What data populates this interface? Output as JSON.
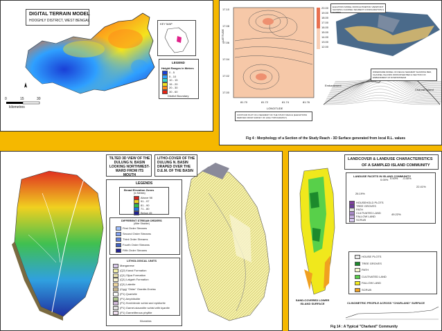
{
  "dtm": {
    "title": "DIGITAL TERRAIN MODEL",
    "subtitle": "HOOGHLY DISTRICT, WEST BENGAL",
    "key_map_label": "KEY MAP",
    "legend_title": "LEGEND",
    "height_title": "Height Ranges in Meters",
    "height_classes": [
      {
        "label": "0 - 5",
        "color": "#1a3fd6"
      },
      {
        "label": "5 - 10",
        "color": "#2fa0ff"
      },
      {
        "label": "10 - 15",
        "color": "#35d4c8"
      },
      {
        "label": "15 - 20",
        "color": "#f4e31c"
      },
      {
        "label": "20 - 30",
        "color": "#ff8a1a"
      },
      {
        "label": "30 - 60",
        "color": "#e82313"
      }
    ],
    "boundary_label": "District Boundary",
    "scale_ticks": [
      "0",
      "15",
      "30"
    ],
    "scale_unit": "kilometres"
  },
  "morph": {
    "caption": "Fig 4 : Morphology of a Section of the Study Reach - 3D Surface generated from local R.L. values",
    "contour_note": "CONTOUR PLOT OF A SEGMENT OF THE STUDY REACH (ELEVATIONS DERIVED FROM SURVEY OF HIGH TOPOGRAPHY)",
    "elev_scale": [
      "20.00",
      "19.00",
      "18.00",
      "17.00",
      "16.00",
      "15.00",
      "14.00",
      "13.00",
      "12.00"
    ],
    "x_ticks": [
      "81.70",
      "81.72",
      "81.74",
      "81.76"
    ],
    "y_ticks": [
      "17.10",
      "17.08",
      "17.06",
      "17.04",
      "17.02",
      "17.00"
    ],
    "x_label": "LONGITUDE",
    "y_label": "LATITUDE",
    "top3d_note": "ELEVATION MODEL FROM ALTIMETRIC VIEWPOINT SHOWING CHANNEL SEGMENT CONFIGURATION & SLOPES",
    "wire_note": "WIREFRAME MODEL OF REACH SEGMENT SHOWING BED, CHANNEL ISLANDS FROM RIVER BED & SECTION OF EMBANKMENT AT DOWNSTREAM",
    "embankment_label": "Embankment",
    "channel_label": "Channel Island"
  },
  "basin": {
    "title_left": "TILTED 3D VIEW OF THE DULUNG N. BASIN LOOKING NORTHWEST-WARD FROM ITS MOUTH",
    "title_right": "LITHO-COVER OF THE DULUNG N. BASIN DRAPED OVER THE D.E.M. OF THE BASIN",
    "legends_title": "LEGENDS",
    "elev_zone_title": "Broad Elevation Zones",
    "elev_zone_unit": "(in Metres)",
    "elev_zones": [
      {
        "label": "Above 98",
        "color": "#d4271c"
      },
      {
        "label": "91 - 97",
        "color": "#f0d020"
      },
      {
        "label": "81 - 90",
        "color": "#2ec04a"
      },
      {
        "label": "71 - 80",
        "color": "#1e78e0"
      },
      {
        "label": "Below 45",
        "color": "#202090"
      }
    ],
    "stream_title": "DIFFERENT STREAM ORDERS",
    "stream_sub": "(After Strahler)",
    "streams": [
      "First Order Streams",
      "Second Order Streams",
      "Third Order Streams",
      "Fourth Order Streams",
      "Fifth Order Streams"
    ],
    "litho_title": "LITHOLOGICAL UNITS",
    "litho_units": [
      {
        "label": "Manganese",
        "color": "#d8c8e8"
      },
      {
        "label": "(Q2) Kanai Formation",
        "color": "#f4f0a8"
      },
      {
        "label": "(Q1) Sijua Formation",
        "color": "#e8e0b0"
      },
      {
        "label": "(Q1) Lalgarh Formation",
        "color": "#f8f4d0"
      },
      {
        "label": "(Q1) Laterite",
        "color": "#f0d8a0"
      },
      {
        "label": "(Cgg) \"Older\" Granite-Gneiss",
        "color": "#c8b890"
      },
      {
        "label": "(P1) Quartzite",
        "color": "#fff"
      },
      {
        "label": "(P1) Amphibolite",
        "color": "#b0c890"
      },
      {
        "label": "(P1) Hornblende schist and epidiorite",
        "color": "#d0b8d8"
      },
      {
        "label": "(P1) Garnet-staurolite schist with kyanite",
        "color": "#e0e0e0"
      },
      {
        "label": "(P1) Garnetiferous phyllite",
        "color": "#f0e0f0"
      }
    ],
    "scale_unit": "Kilometres"
  },
  "island": {
    "title_line1": "LANDCOVER & LANDUSE CHARACTERISTICS",
    "title_line2": "OF A SAMPLED ISLAND COMMUNITY",
    "pie_title": "LANDUSE FACETS IN ISLAND COMMUNITY",
    "legend_items": [
      {
        "label": "HOUSEHOLD PLOTS",
        "color": "#8040a0"
      },
      {
        "label": "TREE GROVES",
        "color": "#6a3d9a"
      },
      {
        "label": "PATH",
        "color": "#e0e0e0"
      },
      {
        "label": "CULTIVATED LAND",
        "color": "#a888c8"
      },
      {
        "label": "FALLOW LAND",
        "color": "#c8b0e0"
      },
      {
        "label": "SCRUB",
        "color": "#d8c8f0"
      }
    ],
    "pie_labels": [
      "0.00%",
      "-0.40%",
      "22.41%",
      "49.22%",
      "26.19%",
      "0.00%"
    ],
    "map_legend": [
      {
        "label": "HOUSE PLOTS",
        "color": "#e8e8e8"
      },
      {
        "label": "TREE GROVES",
        "color": "#1c8a2c"
      },
      {
        "label": "PATH",
        "color": "#f8f8d0"
      },
      {
        "label": "CULTIVATED LAND",
        "color": "#58d04a"
      },
      {
        "label": "FALLOW LAND",
        "color": "#f0e81c"
      },
      {
        "label": "SCRUB",
        "color": "#f0a020"
      }
    ],
    "lower_label": "SAND-COVERED LOWER ISLAND SURFACE",
    "profile_title": "CLINOMETRIC PROFILE ACROSS \"CHARLAND\" SURFACE",
    "caption": "Fig 14 : A Typical \"Charland\" Community"
  }
}
